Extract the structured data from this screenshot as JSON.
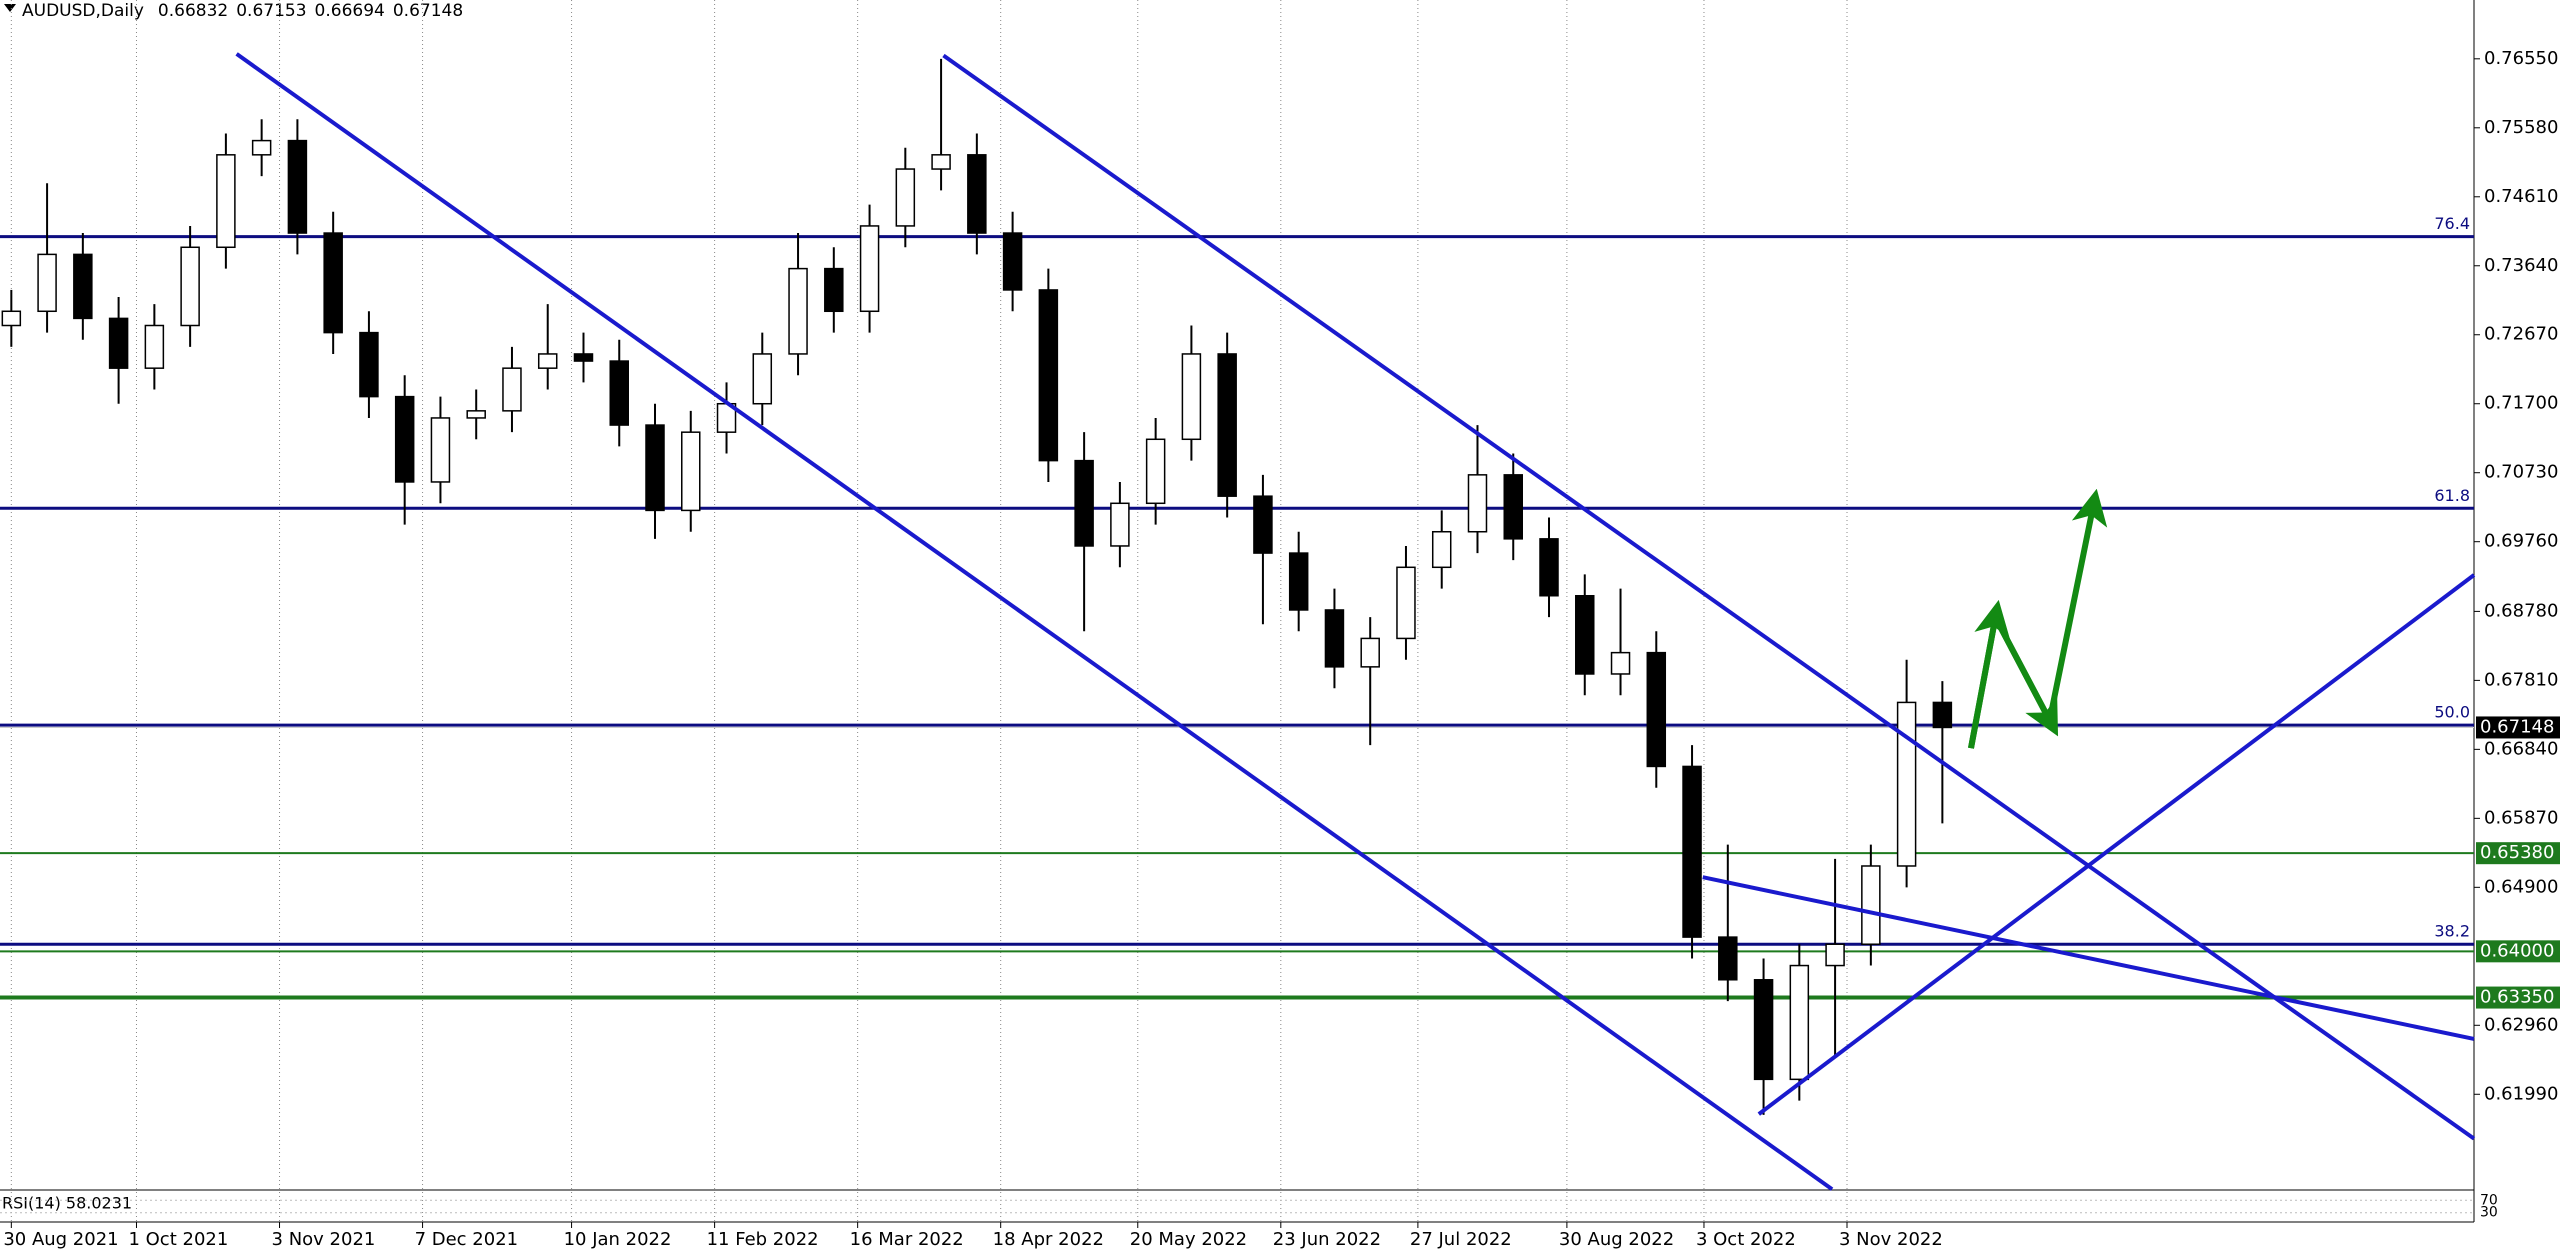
{
  "chart_data": {
    "type": "candlestick",
    "header": {
      "symbol": "AUDUSD,Daily",
      "values": [
        0.66832,
        0.67153,
        0.66694,
        0.67148
      ]
    },
    "x": [
      0,
      6,
      12,
      18,
      24,
      30,
      36,
      42,
      48,
      54,
      60,
      66,
      72,
      78,
      84,
      90,
      96,
      102,
      108,
      114,
      120,
      126,
      132,
      138,
      144,
      150,
      156,
      162,
      168,
      174,
      180,
      186,
      192,
      198,
      204,
      210,
      216,
      222,
      228,
      234,
      240,
      246,
      252,
      258,
      264,
      270,
      276,
      282,
      288,
      294,
      300,
      306,
      312,
      318,
      324
    ],
    "open": [
      0.728,
      0.73,
      0.738,
      0.729,
      0.722,
      0.728,
      0.739,
      0.752,
      0.754,
      0.741,
      0.727,
      0.718,
      0.706,
      0.715,
      0.716,
      0.722,
      0.724,
      0.723,
      0.714,
      0.702,
      0.713,
      0.717,
      0.724,
      0.736,
      0.73,
      0.742,
      0.75,
      0.752,
      0.741,
      0.733,
      0.709,
      0.697,
      0.703,
      0.712,
      0.724,
      0.704,
      0.696,
      0.688,
      0.68,
      0.684,
      0.694,
      0.699,
      0.707,
      0.698,
      0.69,
      0.679,
      0.682,
      0.666,
      0.642,
      0.636,
      0.622,
      0.638,
      0.641,
      0.652,
      0.675
    ],
    "high": [
      0.733,
      0.748,
      0.741,
      0.732,
      0.731,
      0.742,
      0.755,
      0.757,
      0.757,
      0.744,
      0.73,
      0.721,
      0.718,
      0.719,
      0.725,
      0.731,
      0.727,
      0.726,
      0.717,
      0.716,
      0.72,
      0.727,
      0.741,
      0.739,
      0.745,
      0.753,
      0.7655,
      0.755,
      0.744,
      0.736,
      0.713,
      0.706,
      0.715,
      0.728,
      0.727,
      0.707,
      0.699,
      0.691,
      0.687,
      0.697,
      0.702,
      0.714,
      0.71,
      0.701,
      0.693,
      0.691,
      0.685,
      0.669,
      0.655,
      0.639,
      0.641,
      0.653,
      0.655,
      0.681,
      0.678
    ],
    "low": [
      0.725,
      0.727,
      0.726,
      0.717,
      0.719,
      0.725,
      0.736,
      0.749,
      0.738,
      0.724,
      0.715,
      0.7,
      0.703,
      0.712,
      0.713,
      0.719,
      0.72,
      0.711,
      0.698,
      0.699,
      0.71,
      0.714,
      0.721,
      0.727,
      0.727,
      0.739,
      0.747,
      0.738,
      0.73,
      0.706,
      0.685,
      0.694,
      0.7,
      0.709,
      0.701,
      0.686,
      0.685,
      0.677,
      0.669,
      0.681,
      0.691,
      0.696,
      0.695,
      0.687,
      0.676,
      0.676,
      0.663,
      0.639,
      0.633,
      0.617,
      0.619,
      0.625,
      0.638,
      0.649,
      0.658
    ],
    "close": [
      0.73,
      0.738,
      0.729,
      0.722,
      0.728,
      0.739,
      0.752,
      0.754,
      0.741,
      0.727,
      0.718,
      0.706,
      0.715,
      0.716,
      0.722,
      0.724,
      0.723,
      0.714,
      0.702,
      0.713,
      0.717,
      0.724,
      0.736,
      0.73,
      0.742,
      0.75,
      0.752,
      0.741,
      0.733,
      0.709,
      0.697,
      0.703,
      0.712,
      0.724,
      0.704,
      0.696,
      0.688,
      0.68,
      0.684,
      0.694,
      0.699,
      0.707,
      0.698,
      0.69,
      0.679,
      0.682,
      0.666,
      0.642,
      0.636,
      0.622,
      0.638,
      0.641,
      0.652,
      0.675,
      0.67148
    ],
    "xlim": [
      -1.9,
      413.2
    ],
    "ylim": [
      0.60658,
      0.77377
    ],
    "xticks": [
      {
        "value": 0,
        "label": "30 Aug 2021"
      },
      {
        "value": 21,
        "label": "1 Oct 2021"
      },
      {
        "value": 45,
        "label": "3 Nov 2021"
      },
      {
        "value": 69,
        "label": "7 Dec 2021"
      },
      {
        "value": 94,
        "label": "10 Jan 2022"
      },
      {
        "value": 118,
        "label": "11 Feb 2022"
      },
      {
        "value": 142,
        "label": "16 Mar 2022"
      },
      {
        "value": 166,
        "label": "18 Apr 2022"
      },
      {
        "value": 189,
        "label": "20 May 2022"
      },
      {
        "value": 213,
        "label": "23 Jun 2022"
      },
      {
        "value": 236,
        "label": "27 Jul 2022"
      },
      {
        "value": 261,
        "label": "30 Aug 2022"
      },
      {
        "value": 284,
        "label": "3 Oct 2022"
      },
      {
        "value": 308,
        "label": "3 Nov 2022"
      }
    ],
    "yticks": [
      {
        "value": 0.7655,
        "label": "0.76550"
      },
      {
        "value": 0.7558,
        "label": "0.75580"
      },
      {
        "value": 0.7461,
        "label": "0.74610"
      },
      {
        "value": 0.7364,
        "label": "0.73640"
      },
      {
        "value": 0.7267,
        "label": "0.72670"
      },
      {
        "value": 0.717,
        "label": "0.71700"
      },
      {
        "value": 0.7073,
        "label": "0.70730"
      },
      {
        "value": 0.6976,
        "label": "0.69760"
      },
      {
        "value": 0.6878,
        "label": "0.68780"
      },
      {
        "value": 0.6781,
        "label": "0.67810"
      },
      {
        "value": 0.6684,
        "label": "0.66840"
      },
      {
        "value": 0.6587,
        "label": "0.65870"
      },
      {
        "value": 0.649,
        "label": "0.64900"
      },
      {
        "value": 0.6296,
        "label": "0.62960"
      },
      {
        "value": 0.6199,
        "label": "0.61990"
      }
    ],
    "grid": true,
    "last_price": 0.67148,
    "levels": [
      {
        "value": 0.7405,
        "label": "76.4"
      },
      {
        "value": 0.7023,
        "label": "61.8"
      },
      {
        "value": 0.6718,
        "label": "50.0"
      },
      {
        "value": 0.641,
        "label": "38.2"
      }
    ],
    "level_color": "#0c0c80",
    "support_lines": [
      {
        "value": 0.6538,
        "label": "0.65380"
      },
      {
        "value": 0.64,
        "label": "0.64000"
      },
      {
        "value": 0.6335,
        "label": "0.63350"
      }
    ],
    "support_color": "#1e7a1e",
    "trendlines": [
      {
        "color": "#1a1acd",
        "x": [
          37.8,
          305.5
        ],
        "y": [
          0.76619,
          0.60655
        ]
      },
      {
        "color": "#1a1acd",
        "x": [
          156.4,
          413.2
        ],
        "y": [
          0.76596,
          0.61367
        ]
      },
      {
        "color": "#1a1acd",
        "x": [
          293.2,
          413.2
        ],
        "y": [
          0.61711,
          0.69292
        ]
      },
      {
        "color": "#1a1acd",
        "x": [
          283.8,
          413.2
        ],
        "y": [
          0.65042,
          0.62768
        ]
      }
    ],
    "arrow": {
      "color": "#138a13",
      "x": [
        328.8,
        332.9,
        342.0,
        349.3
      ],
      "y": [
        0.66857,
        0.68694,
        0.67247,
        0.70256
      ]
    },
    "rsi": {
      "label": "RSI(14) 58.0231",
      "ylim": [
        0,
        100
      ],
      "yticks": [
        70,
        30
      ]
    }
  }
}
